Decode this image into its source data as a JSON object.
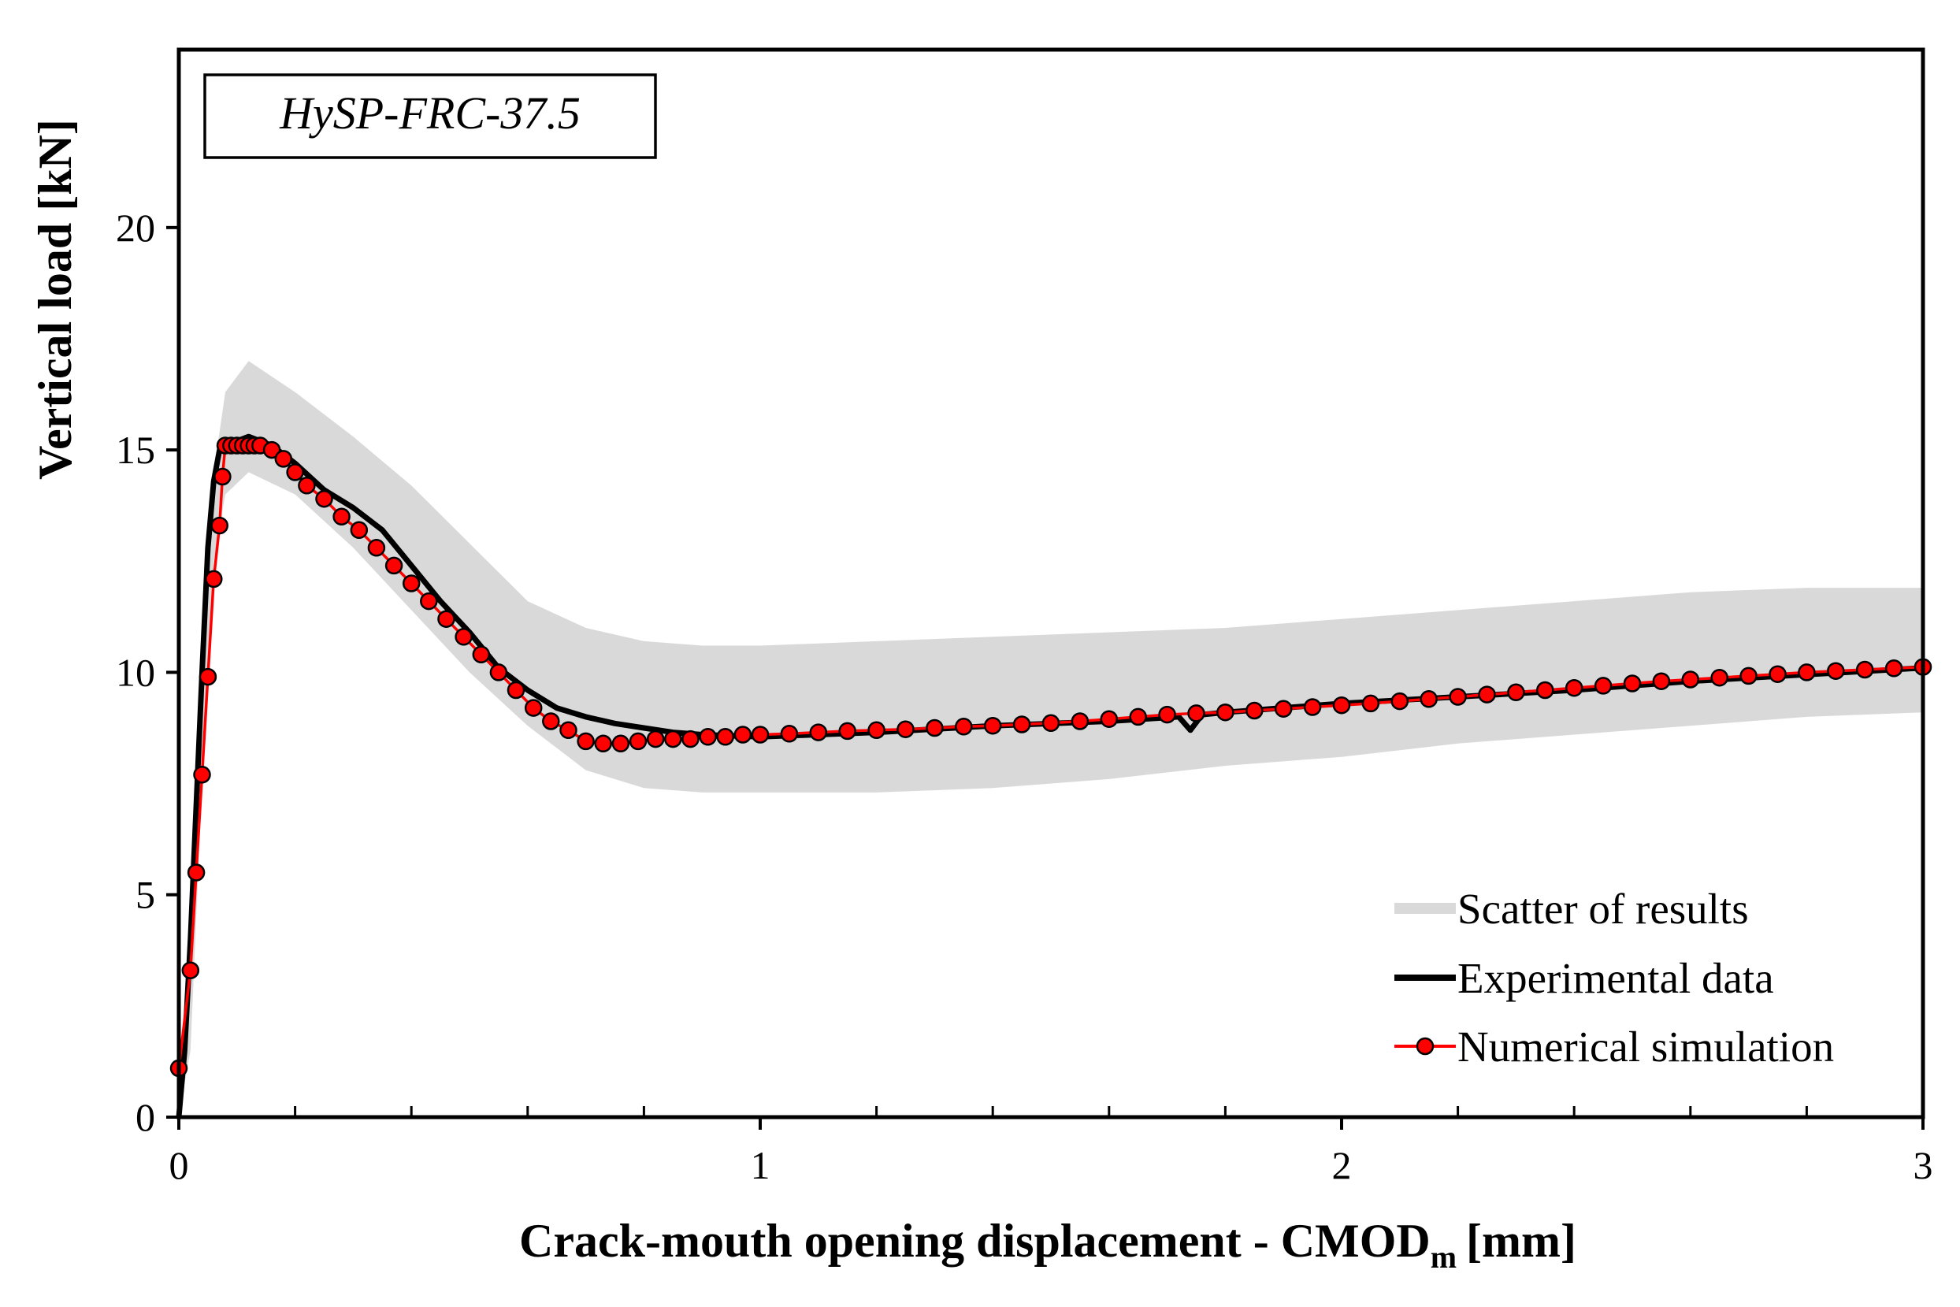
{
  "chart_data": {
    "type": "line",
    "title": "HySP-FRC-37.5",
    "xlabel_main": "Crack-mouth opening displacement - CMOD",
    "xlabel_sub": "m",
    "xlabel_unit": "[mm]",
    "ylabel": "Vertical load [kN]",
    "xlim": [
      0,
      3
    ],
    "ylim": [
      0,
      24
    ],
    "x_ticks": [
      0,
      1,
      2,
      3
    ],
    "y_ticks": [
      0,
      5,
      10,
      15,
      20
    ],
    "x_minor_step": 0.2,
    "grid": false,
    "legend_position": "bottom-right",
    "legend": [
      "Scatter of results",
      "Experimental data",
      "Numerical simulation"
    ],
    "colors": {
      "scatter": "#d9d9d9",
      "experimental": "#000000",
      "simulation_line": "#ff0000",
      "simulation_marker": "#ff0000",
      "marker_edge": "#000000"
    },
    "scatter_band": {
      "x": [
        0.0,
        0.02,
        0.04,
        0.06,
        0.08,
        0.12,
        0.2,
        0.3,
        0.4,
        0.5,
        0.6,
        0.7,
        0.8,
        0.9,
        1.0,
        1.2,
        1.4,
        1.6,
        1.8,
        2.0,
        2.2,
        2.4,
        2.6,
        2.8,
        3.0
      ],
      "upper": [
        0.5,
        5.0,
        11.0,
        14.5,
        16.3,
        17.0,
        16.3,
        15.3,
        14.2,
        12.9,
        11.6,
        11.0,
        10.7,
        10.6,
        10.6,
        10.7,
        10.8,
        10.9,
        11.0,
        11.2,
        11.4,
        11.6,
        11.8,
        11.9,
        11.9
      ],
      "lower": [
        0.0,
        1.5,
        7.5,
        12.5,
        14.0,
        14.5,
        14.0,
        12.8,
        11.4,
        10.0,
        8.8,
        7.8,
        7.4,
        7.3,
        7.3,
        7.3,
        7.4,
        7.6,
        7.9,
        8.1,
        8.4,
        8.6,
        8.8,
        9.0,
        9.1
      ]
    },
    "series": [
      {
        "name": "Experimental data",
        "x": [
          0.0,
          0.01,
          0.02,
          0.03,
          0.04,
          0.05,
          0.06,
          0.07,
          0.08,
          0.1,
          0.12,
          0.14,
          0.16,
          0.2,
          0.25,
          0.3,
          0.35,
          0.4,
          0.45,
          0.5,
          0.55,
          0.6,
          0.65,
          0.7,
          0.75,
          0.8,
          0.85,
          0.9,
          1.0,
          1.2,
          1.4,
          1.6,
          1.72,
          1.74,
          1.76,
          1.8,
          2.0,
          2.2,
          2.4,
          2.6,
          2.8,
          3.0
        ],
        "y": [
          0.0,
          1.5,
          4.0,
          7.0,
          10.0,
          12.8,
          14.3,
          15.0,
          15.1,
          15.2,
          15.3,
          15.2,
          15.1,
          14.7,
          14.1,
          13.7,
          13.2,
          12.4,
          11.6,
          10.9,
          10.1,
          9.6,
          9.2,
          9.0,
          8.85,
          8.75,
          8.65,
          8.6,
          8.55,
          8.65,
          8.8,
          8.9,
          9.0,
          8.7,
          9.05,
          9.1,
          9.3,
          9.45,
          9.6,
          9.8,
          9.95,
          10.1
        ]
      },
      {
        "name": "Numerical simulation",
        "x": [
          0.0,
          0.02,
          0.03,
          0.04,
          0.05,
          0.06,
          0.07,
          0.075,
          0.08,
          0.09,
          0.1,
          0.11,
          0.12,
          0.13,
          0.14,
          0.16,
          0.18,
          0.2,
          0.22,
          0.25,
          0.28,
          0.31,
          0.34,
          0.37,
          0.4,
          0.43,
          0.46,
          0.49,
          0.52,
          0.55,
          0.58,
          0.61,
          0.64,
          0.67,
          0.7,
          0.73,
          0.76,
          0.79,
          0.82,
          0.85,
          0.88,
          0.91,
          0.94,
          0.97,
          1.0,
          1.05,
          1.1,
          1.15,
          1.2,
          1.25,
          1.3,
          1.35,
          1.4,
          1.45,
          1.5,
          1.55,
          1.6,
          1.65,
          1.7,
          1.75,
          1.8,
          1.85,
          1.9,
          1.95,
          2.0,
          2.05,
          2.1,
          2.15,
          2.2,
          2.25,
          2.3,
          2.35,
          2.4,
          2.45,
          2.5,
          2.55,
          2.6,
          2.65,
          2.7,
          2.75,
          2.8,
          2.85,
          2.9,
          2.95,
          3.0
        ],
        "y": [
          1.1,
          3.3,
          5.5,
          7.7,
          9.9,
          12.1,
          13.3,
          14.4,
          15.1,
          15.1,
          15.1,
          15.1,
          15.1,
          15.1,
          15.1,
          15.0,
          14.8,
          14.5,
          14.2,
          13.9,
          13.5,
          13.2,
          12.8,
          12.4,
          12.0,
          11.6,
          11.2,
          10.8,
          10.4,
          10.0,
          9.6,
          9.2,
          8.9,
          8.7,
          8.45,
          8.4,
          8.4,
          8.45,
          8.5,
          8.5,
          8.5,
          8.55,
          8.55,
          8.6,
          8.6,
          8.62,
          8.65,
          8.68,
          8.7,
          8.72,
          8.75,
          8.78,
          8.8,
          8.83,
          8.86,
          8.9,
          8.95,
          9.0,
          9.05,
          9.08,
          9.1,
          9.14,
          9.18,
          9.22,
          9.26,
          9.3,
          9.35,
          9.4,
          9.45,
          9.5,
          9.55,
          9.6,
          9.65,
          9.7,
          9.75,
          9.8,
          9.84,
          9.88,
          9.92,
          9.96,
          10.0,
          10.03,
          10.06,
          10.09,
          10.12
        ]
      }
    ]
  }
}
